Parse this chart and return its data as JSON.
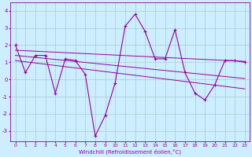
{
  "xlabel": "Windchill (Refroidissement éolien,°C)",
  "bg_color": "#cceeff",
  "line_color": "#990099",
  "grid_color": "#aacccc",
  "xlim": [
    -0.5,
    23.5
  ],
  "ylim": [
    -3.6,
    4.5
  ],
  "yticks": [
    -3,
    -2,
    -1,
    0,
    1,
    2,
    3,
    4
  ],
  "xticks": [
    0,
    1,
    2,
    3,
    4,
    5,
    6,
    7,
    8,
    9,
    10,
    11,
    12,
    13,
    14,
    15,
    16,
    17,
    18,
    19,
    20,
    21,
    22,
    23
  ],
  "main_x": [
    0,
    1,
    2,
    3,
    4,
    5,
    6,
    7,
    8,
    9,
    10,
    11,
    12,
    13,
    14,
    15,
    16,
    17,
    18,
    19,
    20,
    21,
    22,
    23
  ],
  "main_y": [
    2.0,
    0.4,
    1.4,
    1.4,
    -0.8,
    1.2,
    1.1,
    0.3,
    -3.3,
    -2.1,
    -0.2,
    3.1,
    3.8,
    2.8,
    1.2,
    1.2,
    2.9,
    0.4,
    -0.8,
    -1.2,
    -0.3,
    1.1,
    1.1,
    1.0
  ],
  "line2_x": [
    0,
    23
  ],
  "line2_y": [
    1.7,
    1.05
  ],
  "line3_x": [
    0,
    23
  ],
  "line3_y": [
    1.4,
    0.05
  ],
  "line4_x": [
    0,
    23
  ],
  "line4_y": [
    1.1,
    -0.55
  ]
}
